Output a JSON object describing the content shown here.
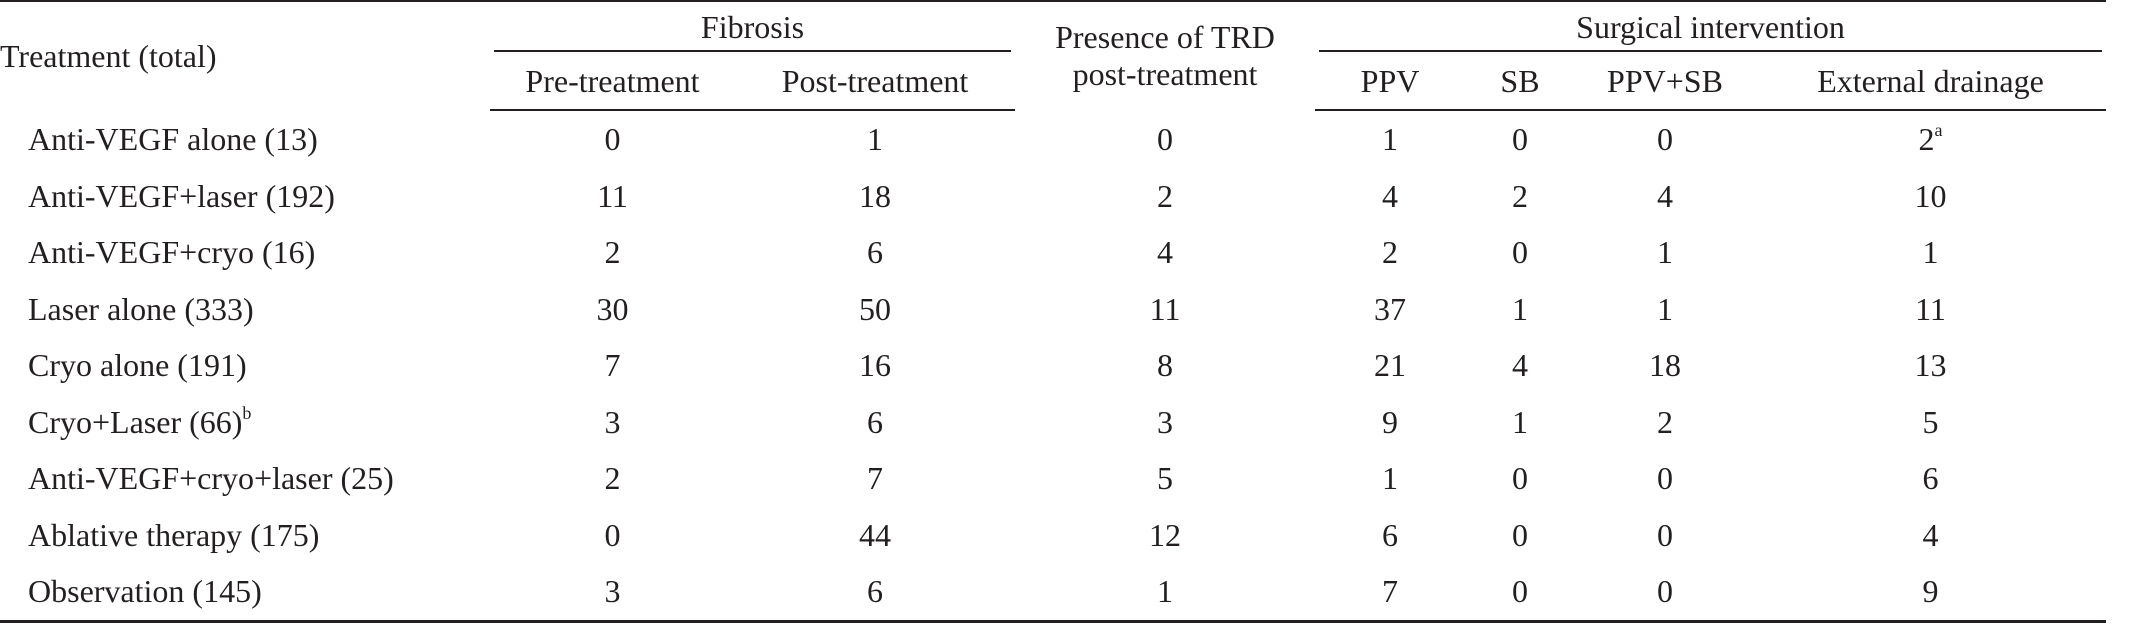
{
  "header": {
    "treatment": "Treatment (total)",
    "fibrosis": "Fibrosis",
    "trd": "Presence of TRD",
    "trd_line2": "post-treatment",
    "surgical": "Surgical intervention",
    "pre": "Pre-treatment",
    "post": "Post-treatment",
    "ppv": "PPV",
    "sb": "SB",
    "ppv_sb": "PPV+SB",
    "external": "External drainage"
  },
  "rows": [
    {
      "treatment": "Anti-VEGF alone (13)",
      "treatment_sup": "",
      "pre": "0",
      "post": "1",
      "trd": "0",
      "ppv": "1",
      "sb": "0",
      "ppv_sb": "0",
      "external": "2",
      "external_sup": "a"
    },
    {
      "treatment": "Anti-VEGF+laser (192)",
      "treatment_sup": "",
      "pre": "11",
      "post": "18",
      "trd": "2",
      "ppv": "4",
      "sb": "2",
      "ppv_sb": "4",
      "external": "10",
      "external_sup": ""
    },
    {
      "treatment": "Anti-VEGF+cryo (16)",
      "treatment_sup": "",
      "pre": "2",
      "post": "6",
      "trd": "4",
      "ppv": "2",
      "sb": "0",
      "ppv_sb": "1",
      "external": "1",
      "external_sup": ""
    },
    {
      "treatment": "Laser alone (333)",
      "treatment_sup": "",
      "pre": "30",
      "post": "50",
      "trd": "11",
      "ppv": "37",
      "sb": "1",
      "ppv_sb": "1",
      "external": "11",
      "external_sup": ""
    },
    {
      "treatment": "Cryo alone (191)",
      "treatment_sup": "",
      "pre": "7",
      "post": "16",
      "trd": "8",
      "ppv": "21",
      "sb": "4",
      "ppv_sb": "18",
      "external": "13",
      "external_sup": ""
    },
    {
      "treatment": "Cryo+Laser (66)",
      "treatment_sup": "b",
      "pre": "3",
      "post": "6",
      "trd": "3",
      "ppv": "9",
      "sb": "1",
      "ppv_sb": "2",
      "external": "5",
      "external_sup": ""
    },
    {
      "treatment": "Anti-VEGF+cryo+laser (25)",
      "treatment_sup": "",
      "pre": "2",
      "post": "7",
      "trd": "5",
      "ppv": "1",
      "sb": "0",
      "ppv_sb": "0",
      "external": "6",
      "external_sup": ""
    },
    {
      "treatment": "Ablative therapy (175)",
      "treatment_sup": "",
      "pre": "0",
      "post": "44",
      "trd": "12",
      "ppv": "6",
      "sb": "0",
      "ppv_sb": "0",
      "external": "4",
      "external_sup": ""
    },
    {
      "treatment": "Observation (145)",
      "treatment_sup": "",
      "pre": "3",
      "post": "6",
      "trd": "1",
      "ppv": "7",
      "sb": "0",
      "ppv_sb": "0",
      "external": "9",
      "external_sup": ""
    }
  ]
}
